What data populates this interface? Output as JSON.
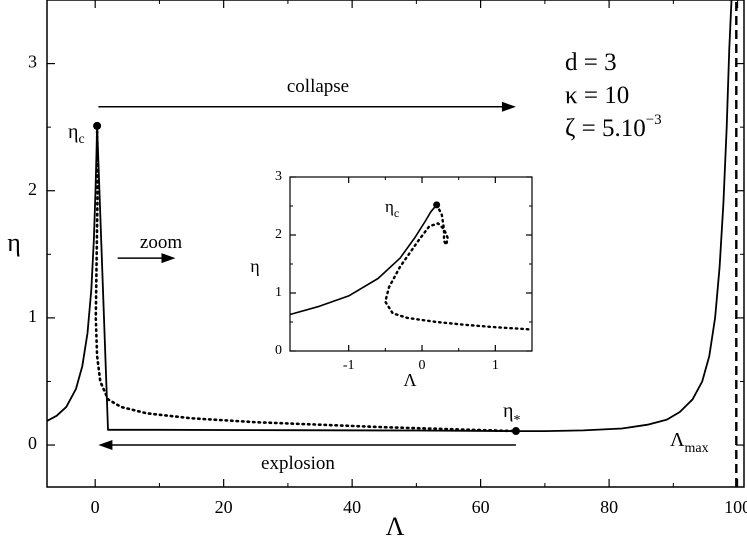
{
  "chart_data": [
    {
      "type": "line",
      "title": "",
      "xlabel": "Λ",
      "ylabel": "η",
      "xlim": [
        -7.5,
        101
      ],
      "ylim": [
        -0.33,
        3.5
      ],
      "xticks": [
        0,
        20,
        40,
        60,
        80,
        100
      ],
      "yticks": [
        0,
        1,
        2,
        3
      ],
      "grid": false,
      "series": [
        {
          "key": "solid",
          "style": "solid",
          "points": [
            [
              -7.5,
              0.19
            ],
            [
              -6,
              0.23
            ],
            [
              -4.5,
              0.3
            ],
            [
              -3,
              0.44
            ],
            [
              -2,
              0.62
            ],
            [
              -1.2,
              0.88
            ],
            [
              -0.6,
              1.22
            ],
            [
              -0.2,
              1.62
            ],
            [
              0.05,
              2.0
            ],
            [
              0.2,
              2.3
            ],
            [
              0.3,
              2.51
            ],
            [
              2,
              0.12
            ],
            [
              10,
              0.12
            ],
            [
              30,
              0.117
            ],
            [
              50,
              0.114
            ],
            [
              65.5,
              0.11
            ],
            [
              70,
              0.11
            ],
            [
              76,
              0.115
            ],
            [
              82,
              0.13
            ],
            [
              86,
              0.16
            ],
            [
              89,
              0.2
            ],
            [
              91,
              0.26
            ],
            [
              93,
              0.36
            ],
            [
              94.5,
              0.5
            ],
            [
              95.6,
              0.7
            ],
            [
              96.5,
              1.0
            ],
            [
              97.2,
              1.4
            ],
            [
              97.8,
              1.9
            ],
            [
              98.3,
              2.5
            ],
            [
              98.7,
              3.1
            ],
            [
              99.05,
              3.5
            ]
          ]
        },
        {
          "key": "dotted",
          "style": "dotted",
          "points": [
            [
              0.3,
              2.51
            ],
            [
              0.35,
              2.3
            ],
            [
              0.4,
              2.1
            ],
            [
              0.35,
              1.9
            ],
            [
              0.1,
              1.0
            ],
            [
              0.3,
              0.7
            ],
            [
              0.8,
              0.5
            ],
            [
              2,
              0.36
            ],
            [
              4,
              0.3
            ],
            [
              8,
              0.25
            ],
            [
              15,
              0.21
            ],
            [
              25,
              0.18
            ],
            [
              35,
              0.16
            ],
            [
              45,
              0.14
            ],
            [
              55,
              0.125
            ],
            [
              65.5,
              0.11
            ]
          ]
        },
        {
          "key": "lambda-max",
          "style": "dashed",
          "points": [
            [
              99.8,
              -0.33
            ],
            [
              99.8,
              3.5
            ]
          ]
        }
      ],
      "markers": [
        {
          "name": "eta-c",
          "label_main": "η",
          "label_sub": "c",
          "x": 0.3,
          "y": 2.51
        },
        {
          "name": "eta-star",
          "label_main": "η",
          "label_sub": "*",
          "x": 65.5,
          "y": 0.11
        }
      ],
      "annotations": {
        "collapse": "collapse",
        "explosion": "explosion",
        "zoom": "zoom",
        "lambda_max_main": "Λ",
        "lambda_max_sub": "max",
        "param_d": "d = 3",
        "param_kappa": "κ = 10",
        "param_zeta_main": "ζ = 5.10",
        "param_zeta_exp": "−3"
      },
      "arrows": [
        {
          "name": "collapse-arrow",
          "x_from": 0.5,
          "x_to": 65.5,
          "y": 2.66
        },
        {
          "name": "explosion-arrow",
          "x_from": 65.5,
          "x_to": 0.5,
          "y": 0.0
        },
        {
          "name": "zoom-arrow",
          "x_from": 3.5,
          "x_to": 12.5,
          "y": 1.47
        }
      ]
    },
    {
      "type": "line",
      "title": "inset",
      "xlabel": "Λ",
      "ylabel": "η",
      "xlim": [
        -1.8,
        1.5
      ],
      "ylim": [
        0,
        3
      ],
      "xticks": [
        -1,
        0,
        1
      ],
      "yticks": [
        0,
        1,
        2,
        3
      ],
      "grid": false,
      "series": [
        {
          "key": "solid",
          "style": "solid",
          "points": [
            [
              -1.8,
              0.63
            ],
            [
              -1.4,
              0.77
            ],
            [
              -1.0,
              0.95
            ],
            [
              -0.6,
              1.25
            ],
            [
              -0.3,
              1.6
            ],
            [
              -0.1,
              1.95
            ],
            [
              0.05,
              2.25
            ],
            [
              0.12,
              2.4
            ],
            [
              0.2,
              2.52
            ]
          ]
        },
        {
          "key": "dotted",
          "style": "dotted",
          "points": [
            [
              0.2,
              2.52
            ],
            [
              0.27,
              2.35
            ],
            [
              0.3,
              2.1
            ],
            [
              0.3,
              1.9
            ],
            [
              0.33,
              1.83
            ],
            [
              0.35,
              1.95
            ],
            [
              0.3,
              2.1
            ],
            [
              0.22,
              2.2
            ],
            [
              0.1,
              2.15
            ],
            [
              -0.05,
              1.9
            ],
            [
              -0.3,
              1.45
            ],
            [
              -0.45,
              1.1
            ],
            [
              -0.5,
              0.85
            ],
            [
              -0.4,
              0.65
            ],
            [
              -0.2,
              0.57
            ],
            [
              0.2,
              0.5
            ],
            [
              0.6,
              0.45
            ],
            [
              1.0,
              0.41
            ],
            [
              1.5,
              0.37
            ]
          ]
        }
      ],
      "markers": [
        {
          "name": "inset-eta-c",
          "label_main": "η",
          "label_sub": "c",
          "x": 0.2,
          "y": 2.52
        }
      ]
    }
  ]
}
